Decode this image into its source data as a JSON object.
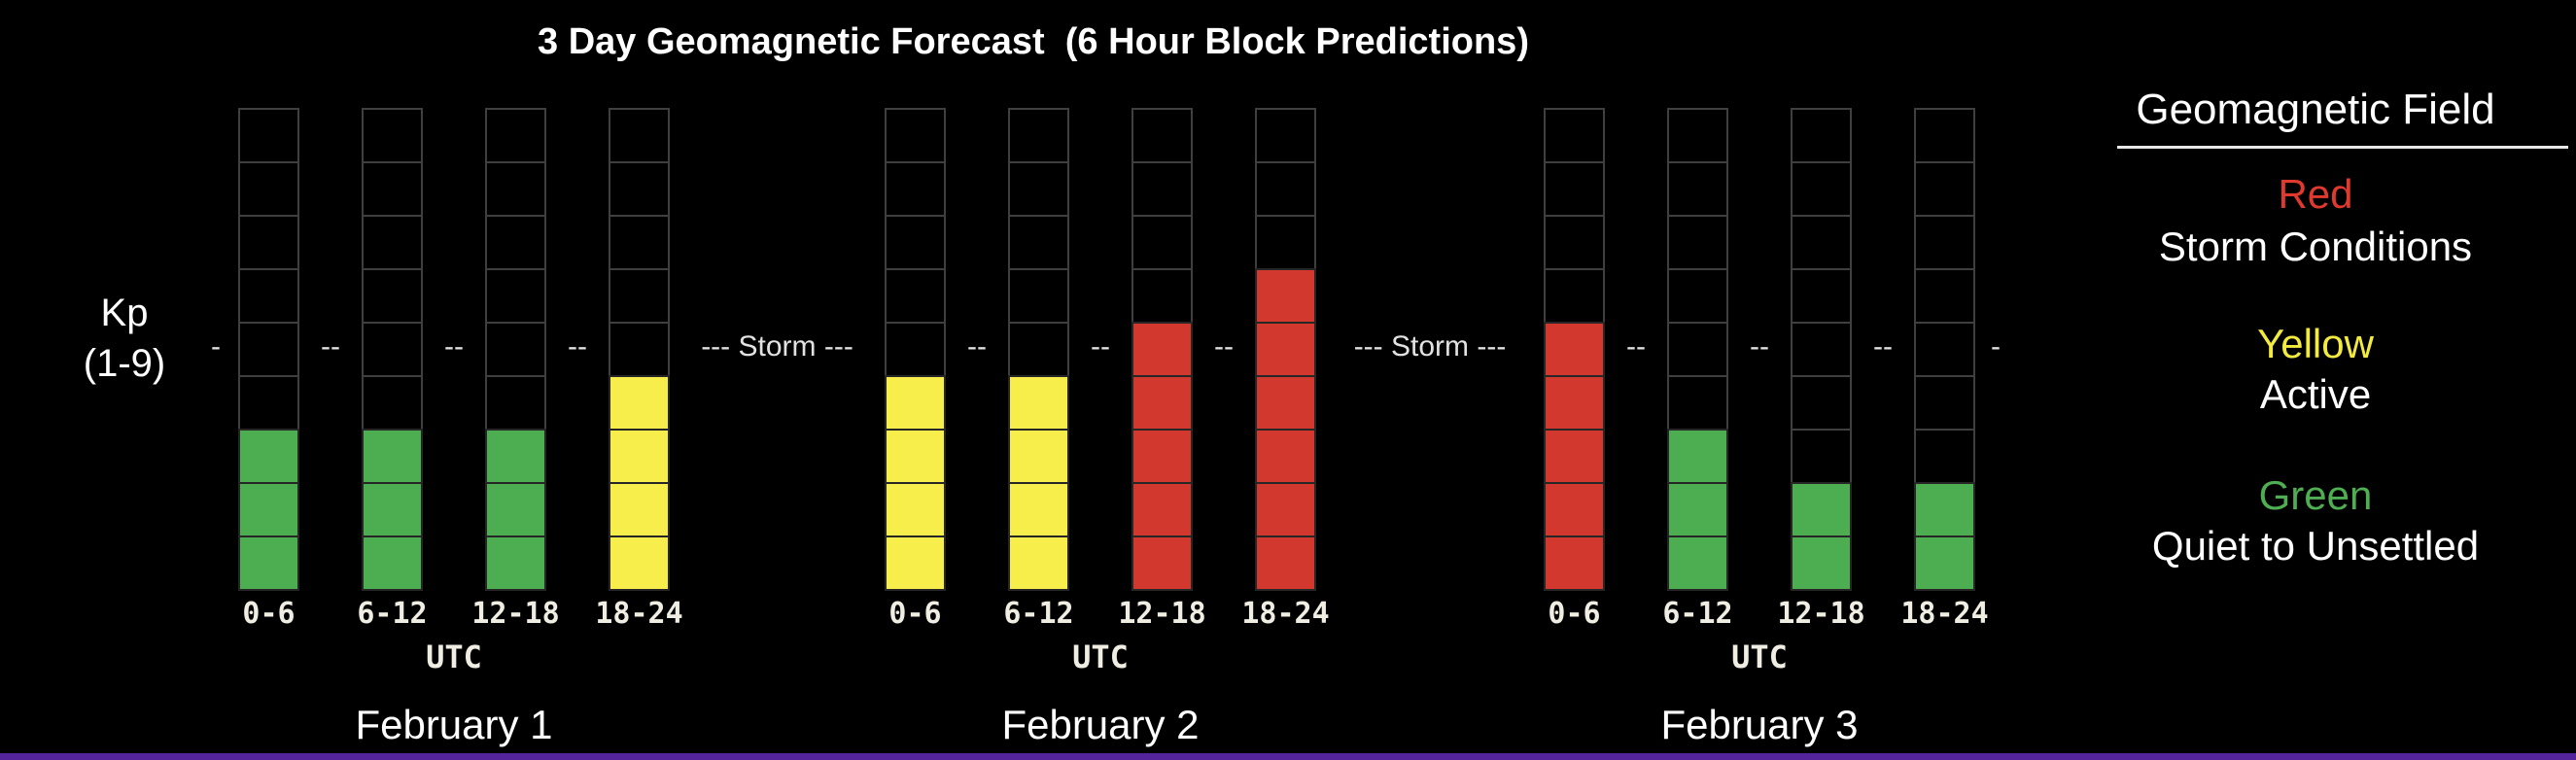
{
  "title": "3 Day Geomagnetic Forecast  (6 Hour Block Predictions)",
  "y_axis": {
    "label_line1": "Kp",
    "label_line2": "(1-9)"
  },
  "x_axis": {
    "unit_label": "UTC"
  },
  "storm_line": {
    "label": "Storm",
    "group_dash": "---",
    "inner_dash": "--",
    "edge_dash": "-"
  },
  "legend": {
    "heading": "Geomagnetic Field",
    "entries": [
      {
        "color_name": "Red",
        "color_hex": "#e0392d",
        "description": "Storm Conditions"
      },
      {
        "color_name": "Yellow",
        "color_hex": "#f3ea40",
        "description": "Active"
      },
      {
        "color_name": "Green",
        "color_hex": "#4fae52",
        "description": "Quiet to Unsettled"
      }
    ]
  },
  "colors": {
    "green": "#4cae51",
    "yellow": "#f8ee4b",
    "red": "#d3382f",
    "empty_cell_border": "#3f3f3f",
    "filled_cell_border": "#262626",
    "bottom_accent": "#53249c",
    "text": "#ffffff"
  },
  "chart_data": {
    "type": "bar",
    "title": "3 Day Geomagnetic Forecast  (6 Hour Block Predictions)",
    "ylabel": "Kp (1-9)",
    "ylim": [
      0,
      9
    ],
    "cells_per_bar": 9,
    "storm_threshold_kp": 5,
    "color_rule": {
      "green": "Kp 1-3 Quiet to Unsettled",
      "yellow": "Kp 4 Active",
      "red": "Kp 5-9 Storm Conditions"
    },
    "categories": [
      "0-6",
      "6-12",
      "12-18",
      "18-24"
    ],
    "groups": [
      {
        "date": "February 1",
        "blocks": [
          {
            "utc": "0-6",
            "kp": 3,
            "color": "green"
          },
          {
            "utc": "6-12",
            "kp": 3,
            "color": "green"
          },
          {
            "utc": "12-18",
            "kp": 3,
            "color": "green"
          },
          {
            "utc": "18-24",
            "kp": 4,
            "color": "yellow"
          }
        ]
      },
      {
        "date": "February 2",
        "blocks": [
          {
            "utc": "0-6",
            "kp": 4,
            "color": "yellow"
          },
          {
            "utc": "6-12",
            "kp": 4,
            "color": "yellow"
          },
          {
            "utc": "12-18",
            "kp": 5,
            "color": "red"
          },
          {
            "utc": "18-24",
            "kp": 6,
            "color": "red"
          }
        ]
      },
      {
        "date": "February 3",
        "blocks": [
          {
            "utc": "0-6",
            "kp": 5,
            "color": "red"
          },
          {
            "utc": "6-12",
            "kp": 3,
            "color": "green"
          },
          {
            "utc": "12-18",
            "kp": 2,
            "color": "green"
          },
          {
            "utc": "18-24",
            "kp": 2,
            "color": "green"
          }
        ]
      }
    ]
  }
}
